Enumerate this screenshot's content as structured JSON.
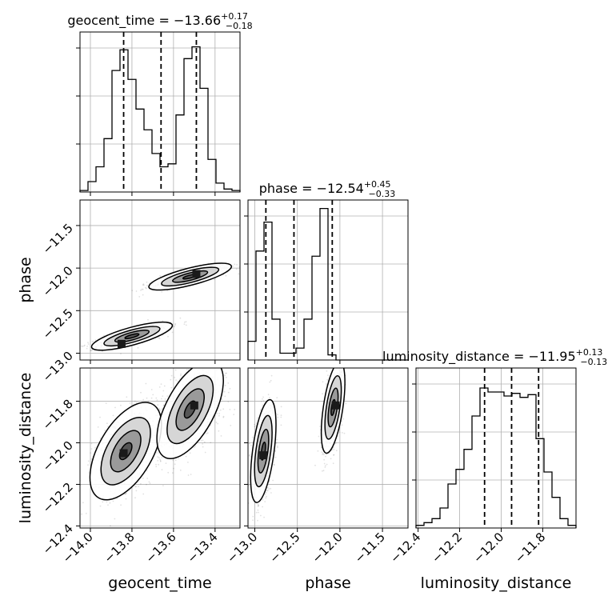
{
  "chart_data": {
    "type": "corner",
    "parameters": [
      "geocent_time",
      "phase",
      "luminosity_distance"
    ],
    "titles": [
      {
        "param": "geocent_time",
        "prefix": "geocent_time = ",
        "median": "−13.66",
        "plus": "+0.17",
        "minus": "−0.18"
      },
      {
        "param": "phase",
        "prefix": "phase = ",
        "median": "−12.54",
        "plus": "+0.45",
        "minus": "−0.33"
      },
      {
        "param": "luminosity_distance",
        "prefix": "luminosity_distance = ",
        "median": "−11.95",
        "plus": "+0.13",
        "minus": "−0.13"
      }
    ],
    "axes": {
      "geocent_time": {
        "range": [
          -14.05,
          -13.28
        ],
        "ticks": [
          -14.0,
          -13.8,
          -13.6,
          -13.4
        ],
        "tick_labels": [
          "−14.0",
          "−13.8",
          "−13.6",
          "−13.4"
        ]
      },
      "phase": {
        "range": [
          -13.08,
          -11.2
        ],
        "ticks": [
          -13.0,
          -12.5,
          -12.0,
          -11.5
        ],
        "tick_labels": [
          "−13.0",
          "−12.5",
          "−12.0",
          "−11.5"
        ]
      },
      "luminosity_distance": {
        "range": [
          -12.41,
          -11.64
        ],
        "ticks": [
          -12.4,
          -12.2,
          -12.0,
          -11.8
        ],
        "tick_labels": [
          "−12.4",
          "−12.2",
          "−12.0",
          "−11.8"
        ]
      }
    },
    "histograms": [
      {
        "param": "geocent_time",
        "bin_edges": [
          -14.05,
          -14.0115,
          -13.973,
          -13.9345,
          -13.896,
          -13.8575,
          -13.819,
          -13.7805,
          -13.742,
          -13.7035,
          -13.665,
          -13.6265,
          -13.588,
          -13.5495,
          -13.511,
          -13.4725,
          -13.434,
          -13.3955,
          -13.357,
          -13.3185,
          -13.28
        ],
        "counts": [
          0.5,
          3.5,
          8.5,
          18,
          41,
          48,
          38,
          28,
          21,
          13,
          8.5,
          9.5,
          26,
          45,
          49,
          35,
          11,
          3,
          1,
          0.5
        ],
        "ymax": 54,
        "quantiles": [
          -13.84,
          -13.66,
          -13.49
        ]
      },
      {
        "param": "phase",
        "bin_edges": [
          -13.08,
          -12.986,
          -12.892,
          -12.798,
          -12.704,
          -12.61,
          -12.516,
          -12.422,
          -12.328,
          -12.234,
          -12.14,
          -12.046,
          -11.952,
          -11.858,
          -11.764,
          -11.67,
          -11.576,
          -11.482,
          -11.388,
          -11.294,
          -11.2
        ],
        "counts": [
          5.5,
          32,
          40.5,
          12,
          2,
          2,
          3.5,
          12,
          30.5,
          44.5,
          1.5,
          0,
          0,
          0,
          0,
          0,
          0,
          0,
          0,
          0
        ],
        "ymax": 47,
        "quantiles": [
          -12.87,
          -12.54,
          -12.09
        ]
      },
      {
        "param": "luminosity_distance",
        "bin_edges": [
          -12.41,
          -12.3715,
          -12.333,
          -12.2945,
          -12.256,
          -12.2175,
          -12.179,
          -12.1405,
          -12.102,
          -12.0635,
          -12.025,
          -11.9865,
          -11.948,
          -11.9095,
          -11.871,
          -11.8325,
          -11.794,
          -11.7555,
          -11.717,
          -11.6785,
          -11.64
        ],
        "counts": [
          1,
          2,
          3.5,
          7.5,
          16.5,
          22,
          29.5,
          42,
          52.5,
          51,
          51,
          49.5,
          50.5,
          49,
          50,
          33.5,
          21,
          11.5,
          3.5,
          1
        ],
        "ymax": 60,
        "quantiles": [
          -12.08,
          -11.95,
          -11.82
        ]
      }
    ],
    "hist2d": [
      {
        "x": "geocent_time",
        "y": "phase",
        "modes": [
          {
            "center": [
              -13.8,
              -12.8
            ],
            "angle_deg": 34,
            "s1": 0.09,
            "s2": 0.025,
            "darkest": [
              -13.85,
              -12.89
            ]
          },
          {
            "center": [
              -13.52,
              -12.1
            ],
            "angle_deg": 32,
            "s1": 0.09,
            "s2": 0.025,
            "darkest": [
              -13.49,
              -12.07
            ]
          }
        ]
      },
      {
        "x": "geocent_time",
        "y": "luminosity_distance",
        "modes": [
          {
            "center": [
              -13.83,
              -12.04
            ],
            "angle_deg": 60,
            "s1": 0.1,
            "s2": 0.05,
            "darkest": [
              -13.84,
              -12.05
            ]
          },
          {
            "center": [
              -13.52,
              -11.84
            ],
            "angle_deg": 62,
            "s1": 0.1,
            "s2": 0.045,
            "darkest": [
              -13.5,
              -11.82
            ]
          }
        ]
      },
      {
        "x": "phase",
        "y": "luminosity_distance",
        "modes": [
          {
            "center": [
              -12.9,
              -12.04
            ],
            "angle_deg": 72,
            "s1": 0.1,
            "s2": 0.04,
            "darkest": [
              -12.9,
              -12.06
            ]
          },
          {
            "center": [
              -12.08,
              -11.83
            ],
            "angle_deg": 70,
            "s1": 0.09,
            "s2": 0.035,
            "darkest": [
              -12.05,
              -11.82
            ]
          }
        ]
      }
    ],
    "grid": true
  }
}
